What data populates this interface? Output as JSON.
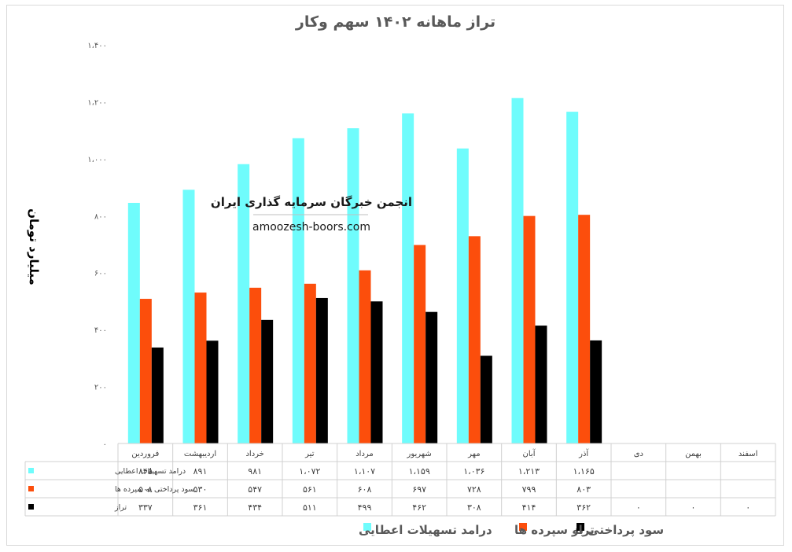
{
  "chart_data": {
    "type": "bar",
    "title": "تراز ماهانه ۱۴۰۲ سهم وکار",
    "ylabel": "میلیارد تومان",
    "xlabel": "",
    "ylim": [
      0,
      1400
    ],
    "yticks": [
      0,
      200,
      400,
      600,
      800,
      1000,
      1200,
      1400
    ],
    "ytick_labels": [
      "۰",
      "۲۰۰",
      "۴۰۰",
      "۶۰۰",
      "۸۰۰",
      "۱،۰۰۰",
      "۱،۲۰۰",
      "۱،۴۰۰"
    ],
    "categories": [
      "فروردین",
      "اردیبهشت",
      "خرداد",
      "تیر",
      "مرداد",
      "شهریور",
      "مهر",
      "آبان",
      "آذر",
      "دی",
      "بهمن",
      "اسفند"
    ],
    "series": [
      {
        "name": "درامد تسهیلات اعطایی",
        "color": "#6ffcfc",
        "values": [
          845,
          891,
          981,
          1072,
          1107,
          1159,
          1036,
          1213,
          1165,
          null,
          null,
          null
        ],
        "labels": [
          "۸۴۵",
          "۸۹۱",
          "۹۸۱",
          "۱،۰۷۲",
          "۱،۱۰۷",
          "۱،۱۵۹",
          "۱،۰۳۶",
          "۱،۲۱۳",
          "۱،۱۶۵",
          "",
          "",
          ""
        ]
      },
      {
        "name": "سود پرداختی به سپرده ها",
        "color": "#fc4e0c",
        "values": [
          508,
          530,
          547,
          561,
          608,
          697,
          728,
          799,
          803,
          null,
          null,
          null
        ],
        "labels": [
          "۵۰۸",
          "۵۳۰",
          "۵۴۷",
          "۵۶۱",
          "۶۰۸",
          "۶۹۷",
          "۷۲۸",
          "۷۹۹",
          "۸۰۳",
          "",
          "",
          ""
        ]
      },
      {
        "name": "تراز",
        "color": "#000000",
        "values": [
          337,
          361,
          434,
          511,
          499,
          462,
          308,
          414,
          362,
          0,
          0,
          0
        ],
        "labels": [
          "۳۳۷",
          "۳۶۱",
          "۴۳۴",
          "۵۱۱",
          "۴۹۹",
          "۴۶۲",
          "۳۰۸",
          "۴۱۴",
          "۳۶۲",
          "۰",
          "۰",
          "۰"
        ]
      }
    ],
    "legend_position": "bottom",
    "grid": false
  },
  "watermark": {
    "org_name": "انجمن خبرگان سرمایه گذاری ایران",
    "url": "amoozesh-boors.com"
  }
}
